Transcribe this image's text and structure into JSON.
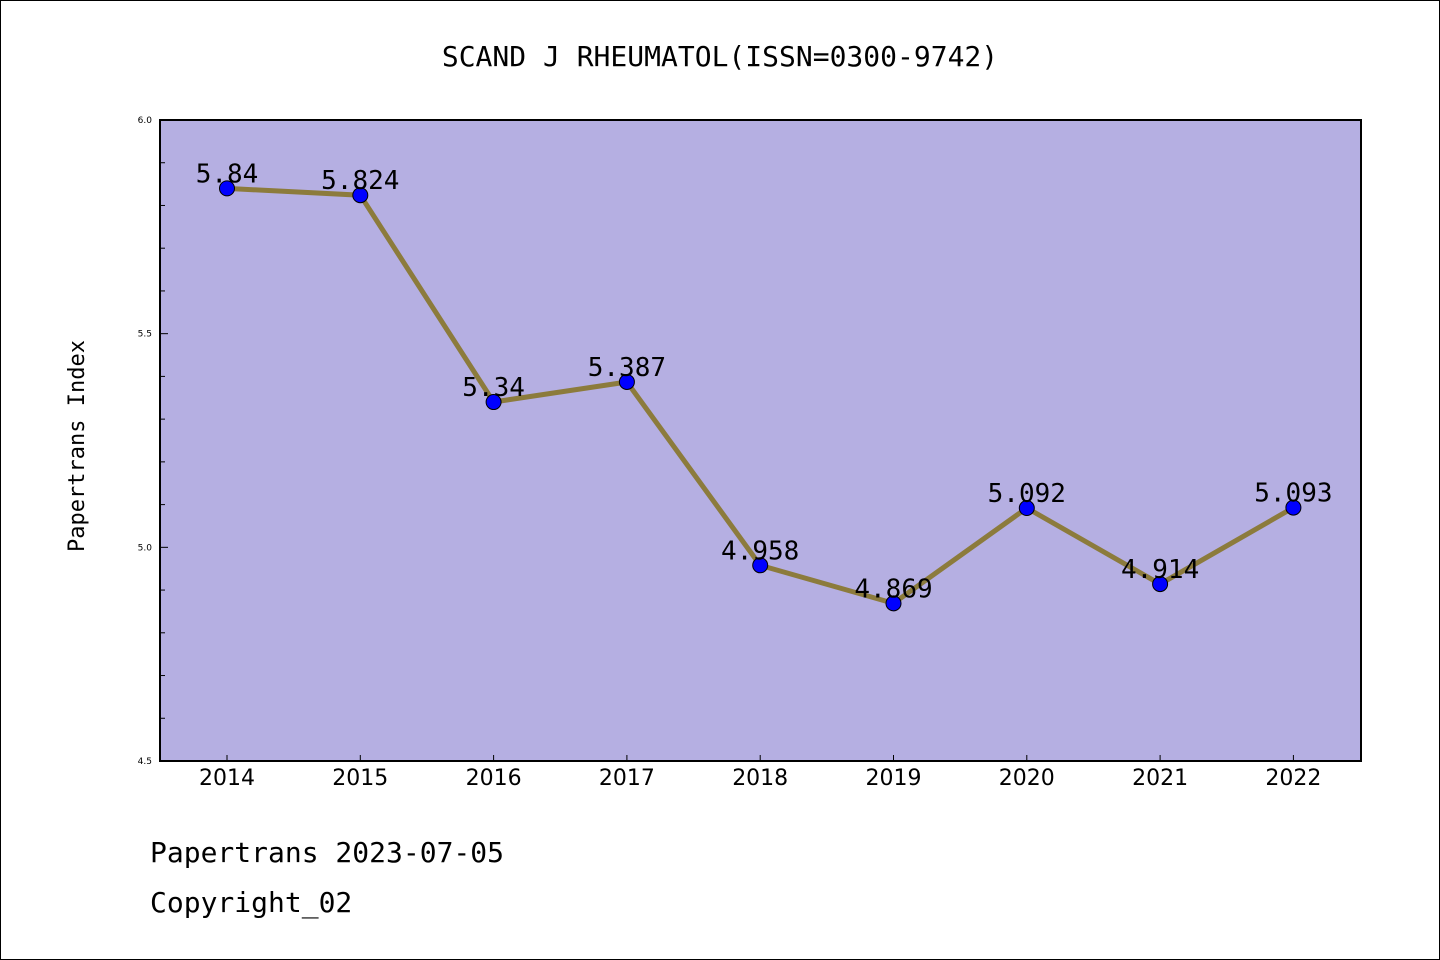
{
  "chart_data": {
    "type": "line",
    "title": "SCAND J RHEUMATOL(ISSN=0300-9742)",
    "ylabel": "Papertrans Index",
    "xlabel": "",
    "categories": [
      "2014",
      "2015",
      "2016",
      "2017",
      "2018",
      "2019",
      "2020",
      "2021",
      "2022"
    ],
    "values": [
      5.84,
      5.824,
      5.34,
      5.387,
      4.958,
      4.869,
      5.092,
      4.914,
      5.093
    ],
    "data_labels": [
      "5.84",
      "5.824",
      "5.34",
      "5.387",
      "4.958",
      "4.869",
      "5.092",
      "4.914",
      "5.093"
    ],
    "ylim": [
      4.5,
      6.0
    ],
    "yticks": [
      "4.5",
      "5.0",
      "5.5",
      "6.0"
    ],
    "ytick_values": [
      4.5,
      5.0,
      5.5,
      6.0
    ],
    "yminor_step": 0.1,
    "grid": false,
    "legend": "none",
    "colors": {
      "plot_background": "#b5afe2",
      "line": "#8c7b3c",
      "marker": "#0000ff"
    }
  },
  "footer": {
    "date_line": "Papertrans 2023-07-05",
    "copyright": "Copyright_02"
  }
}
